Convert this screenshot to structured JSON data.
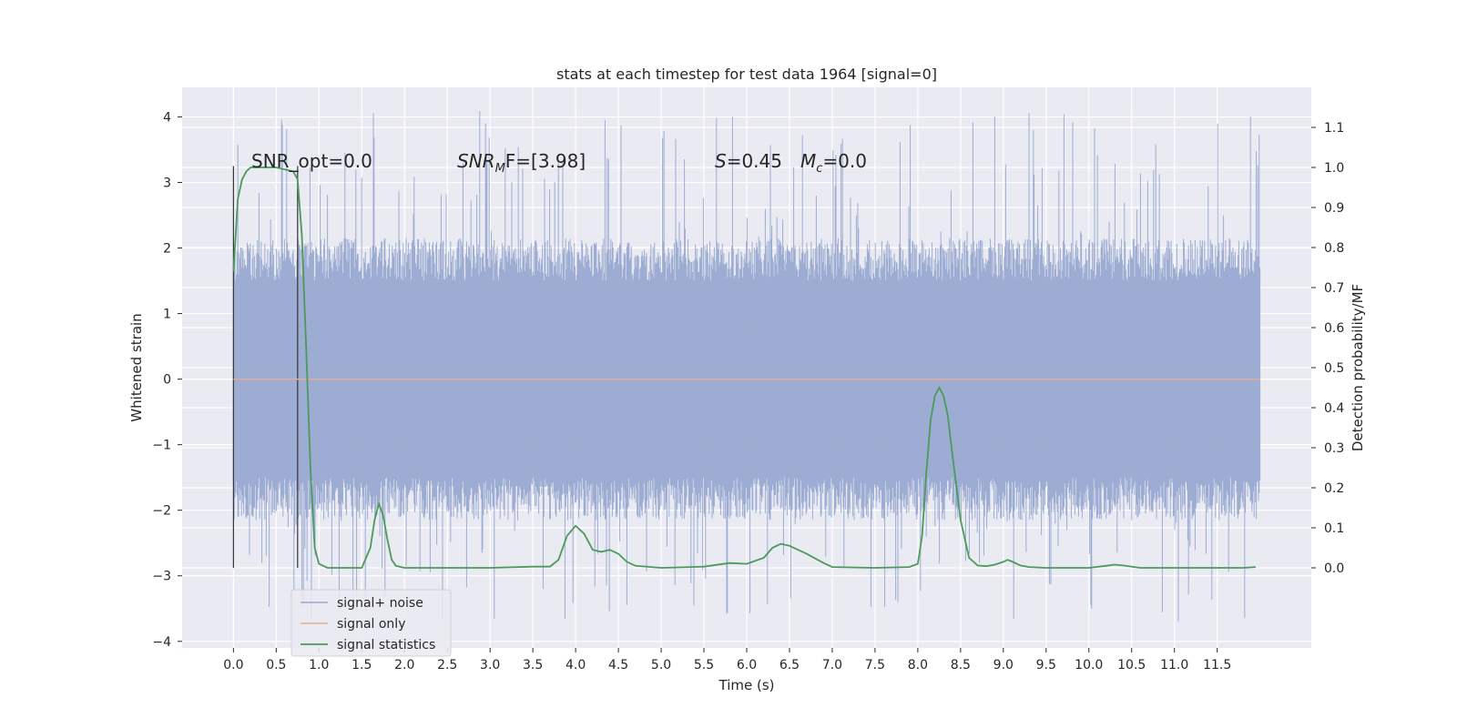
{
  "chart_data": {
    "type": "line",
    "title": "stats at each timestep for test data 1964 [signal=0]",
    "xlabel": "Time (s)",
    "ylabel": "Whitened strain",
    "ylabel_right": "Detection probability/MF",
    "xlim": [
      -0.6,
      12.6
    ],
    "ylim": [
      -4.1,
      4.45
    ],
    "ylim_right": [
      -0.2,
      1.2
    ],
    "x_ticks": [
      "0.0",
      "0.5",
      "1.0",
      "1.5",
      "2.0",
      "2.5",
      "3.0",
      "3.5",
      "4.0",
      "4.5",
      "5.0",
      "5.5",
      "6.0",
      "6.5",
      "7.0",
      "7.5",
      "8.0",
      "8.5",
      "9.0",
      "9.5",
      "10.0",
      "10.5",
      "11.0",
      "11.5"
    ],
    "y_ticks": [
      "−4",
      "−3",
      "−2",
      "−1",
      "0",
      "1",
      "2",
      "3",
      "4"
    ],
    "y_ticks_right": [
      "0.0",
      "0.1",
      "0.2",
      "0.3",
      "0.4",
      "0.5",
      "0.6",
      "0.7",
      "0.8",
      "0.9",
      "1.0",
      "1.1"
    ],
    "grid": true,
    "legend_position": "lower-left",
    "annotations": {
      "snr_opt": "SNR_opt=0.0",
      "snr_mf_prefix": "SNR",
      "snr_mf_sub": "M",
      "snr_mf_suffix": "F=[3.98]",
      "s_label": "S",
      "s_value": "=0.45",
      "mc_label": "M",
      "mc_sub": "c",
      "mc_value": "=0.0"
    },
    "series": [
      {
        "name": "signal+ noise",
        "color": "#98a9d0",
        "axis": "left",
        "x_range": [
          0.0,
          12.0
        ],
        "envelope_typical": [
          -1.5,
          1.5
        ],
        "envelope_extreme": [
          -3.7,
          4.1
        ]
      },
      {
        "name": "signal only",
        "color": "#e8a98f",
        "axis": "left",
        "x": [
          0.0,
          12.0
        ],
        "y": [
          0.0,
          0.0
        ]
      },
      {
        "name": "signal statistics",
        "color": "#4c9a5b",
        "axis": "right",
        "x": [
          0.0,
          0.05,
          0.1,
          0.15,
          0.2,
          0.3,
          0.5,
          0.7,
          0.75,
          0.8,
          0.85,
          0.9,
          0.95,
          1.0,
          1.1,
          1.2,
          1.4,
          1.5,
          1.6,
          1.65,
          1.7,
          1.75,
          1.8,
          1.85,
          1.9,
          2.0,
          2.5,
          3.0,
          3.5,
          3.7,
          3.8,
          3.9,
          4.0,
          4.1,
          4.2,
          4.3,
          4.4,
          4.5,
          4.6,
          4.7,
          5.0,
          5.5,
          5.8,
          6.0,
          6.2,
          6.3,
          6.4,
          6.5,
          6.7,
          6.9,
          7.0,
          7.5,
          7.9,
          8.0,
          8.05,
          8.1,
          8.15,
          8.2,
          8.25,
          8.3,
          8.35,
          8.4,
          8.5,
          8.6,
          8.7,
          8.8,
          8.9,
          9.0,
          9.05,
          9.1,
          9.2,
          9.3,
          9.5,
          10.0,
          10.2,
          10.3,
          10.4,
          10.6,
          11.0,
          11.5,
          11.8,
          11.95
        ],
        "y": [
          0.74,
          0.92,
          0.97,
          0.99,
          1.0,
          1.0,
          1.0,
          0.99,
          0.97,
          0.83,
          0.55,
          0.25,
          0.05,
          0.01,
          0.0,
          0.0,
          0.0,
          0.0,
          0.05,
          0.12,
          0.16,
          0.13,
          0.07,
          0.02,
          0.005,
          0.0,
          0.0,
          0.0,
          0.003,
          0.003,
          0.02,
          0.08,
          0.105,
          0.085,
          0.045,
          0.04,
          0.045,
          0.035,
          0.015,
          0.005,
          0.0,
          0.003,
          0.012,
          0.01,
          0.025,
          0.05,
          0.06,
          0.055,
          0.035,
          0.012,
          0.002,
          0.0,
          0.002,
          0.01,
          0.08,
          0.24,
          0.37,
          0.43,
          0.45,
          0.43,
          0.38,
          0.29,
          0.12,
          0.025,
          0.006,
          0.004,
          0.008,
          0.015,
          0.02,
          0.016,
          0.006,
          0.002,
          0.0,
          0.0,
          0.005,
          0.008,
          0.006,
          0.0,
          0.0,
          0.0,
          0.0,
          0.002
        ]
      }
    ],
    "vertical_markers_x": [
      0.0,
      0.75
    ]
  }
}
